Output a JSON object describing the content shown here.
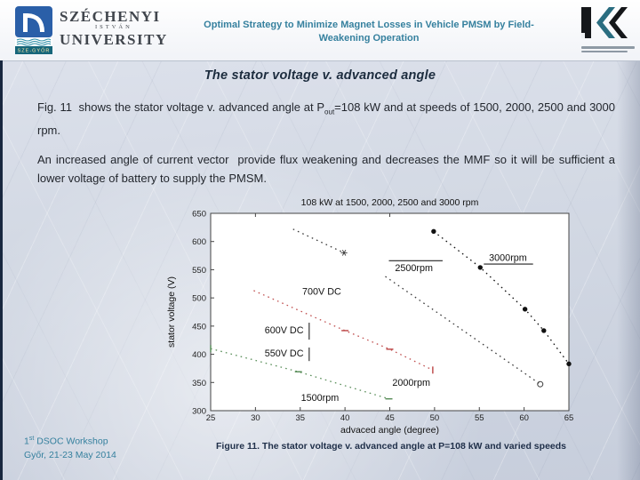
{
  "header": {
    "title_line1": "Optimal Strategy to Minimize Magnet Losses in Vehicle PMSM by Field-",
    "title_line2": "Weakening Operation",
    "accent_color": "#35809e",
    "university_logo": {
      "name_line1": "SZÉCHENYI",
      "name_line2": "ISTVÁN",
      "name_line3": "UNIVERSITY",
      "badge": "SZE-GYŐR",
      "emblem_color": "#2a5fa8",
      "badge_color": "#16667a"
    },
    "jkk_logo": {
      "black": "#15171a",
      "teal": "#2a6d80"
    }
  },
  "slide": {
    "title": "The stator voltage v. advanced angle",
    "paragraph1": {
      "a": "Fig. 11  shows the stator voltage v. advanced angle at P",
      "sub": "out",
      "b": "=108 kW and at speeds of 1500, 2000, 2500 and 3000 rpm."
    },
    "paragraph2": "An increased angle of current vector  provide flux weakening and decreases the MMF so it will be sufficient a lower voltage of battery to supply the PMSM."
  },
  "chart_data": {
    "type": "scatter",
    "title": "108 kW at 1500, 2000, 2500 and 3000 rpm",
    "xlabel": "advaced angle (degree)",
    "ylabel": "stator voltage (V)",
    "xlim": [
      25,
      65
    ],
    "ylim": [
      300,
      650
    ],
    "xticks": [
      25,
      30,
      35,
      40,
      45,
      50,
      55,
      60,
      65
    ],
    "xticks_top": [
      30,
      45
    ],
    "yticks": [
      300,
      350,
      400,
      450,
      500,
      550,
      600,
      650
    ],
    "grid": false,
    "legend_position": "inline-annotations",
    "series": [
      {
        "name": "1500rpm",
        "color": "#5b8f5b",
        "style": "dotted",
        "points": [
          [
            25,
            410,
            "vtick"
          ],
          [
            34.8,
            369,
            "hdash"
          ],
          [
            44.9,
            321,
            "hdash"
          ]
        ]
      },
      {
        "name": "2000rpm",
        "color": "#c05050",
        "style": "dotted",
        "points": [
          [
            29.8,
            513,
            "none"
          ],
          [
            40,
            442,
            "hdash"
          ],
          [
            45,
            409,
            "hdash"
          ],
          [
            49.8,
            372,
            "vtick"
          ]
        ]
      },
      {
        "name": "2500rpm-upper",
        "color": "#3a3a3a",
        "style": "dotted",
        "points": [
          [
            34.2,
            622,
            "none"
          ],
          [
            39.9,
            580,
            "star"
          ]
        ]
      },
      {
        "name": "2500rpm-lower",
        "color": "#3a3a3a",
        "style": "dotted",
        "points": [
          [
            44.5,
            538,
            "none"
          ],
          [
            61.8,
            347,
            "odot"
          ]
        ]
      },
      {
        "name": "3000rpm",
        "color": "#111111",
        "style": "dotted",
        "points": [
          [
            49.9,
            618,
            "dot"
          ],
          [
            55.1,
            554,
            "dot"
          ],
          [
            60.1,
            480,
            "dot"
          ],
          [
            62.2,
            442,
            "dot"
          ],
          [
            65,
            383,
            "dot"
          ]
        ]
      }
    ],
    "annotations": [
      {
        "text": "700V DC",
        "x": 37.4,
        "y": 510
      },
      {
        "text": "600V DC",
        "x": 33.2,
        "y": 442
      },
      {
        "text": "550V DC",
        "x": 33.2,
        "y": 401
      },
      {
        "text": "2500rpm",
        "x": 47.7,
        "y": 552
      },
      {
        "text": "3000rpm",
        "x": 58.2,
        "y": 570
      },
      {
        "text": "2000rpm",
        "x": 47.4,
        "y": 349
      },
      {
        "text": "1500rpm",
        "x": 37.2,
        "y": 322
      }
    ],
    "annotation_lines": [
      {
        "x1": 44.9,
        "y1": 566,
        "x2": 50.9,
        "y2": 566
      },
      {
        "x1": 55.5,
        "y1": 560,
        "x2": 61.0,
        "y2": 560
      },
      {
        "x1": 36.0,
        "y1": 456,
        "x2": 36.0,
        "y2": 426
      },
      {
        "x1": 36.0,
        "y1": 412,
        "x2": 36.0,
        "y2": 388
      }
    ]
  },
  "footer": {
    "workshop_a": "1",
    "workshop_sup": "st",
    "workshop_b": " DSOC Workshop",
    "workshop_line2": "Győr, 21-23 May 2014",
    "caption": "Figure 11. The stator voltage v. advanced angle at P=108 kW and varied speeds"
  }
}
